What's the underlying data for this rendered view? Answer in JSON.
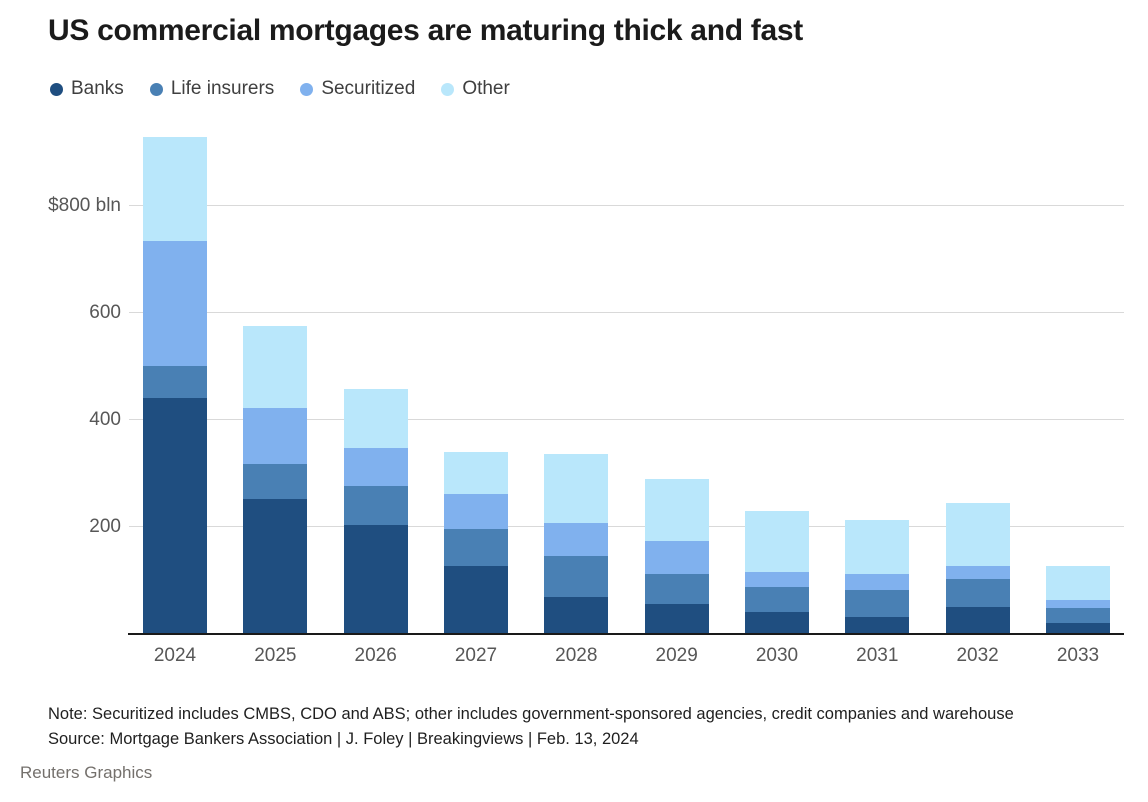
{
  "title": "US commercial mortgages are maturing thick and fast",
  "footnote": {
    "note": "Note: Securitized includes CMBS, CDO and ABS; other includes government-sponsored agencies, credit companies and warehouse",
    "source": "Source: Mortgage Bankers Association | J. Foley | Breakingviews | Feb. 13, 2024"
  },
  "footer": "Reuters Graphics",
  "colors": {
    "banks": "#1f4e80",
    "life_insurers": "#4980b4",
    "securitized": "#80b1ee",
    "other": "#b9e7fb",
    "gridline": "#d9d9d9",
    "axis": "#1a1a1a",
    "tick_text": "#575757"
  },
  "chart_data": {
    "type": "bar",
    "stacked": true,
    "title": "US commercial mortgages are maturing thick and fast",
    "unit": "$ bln",
    "categories": [
      "2024",
      "2025",
      "2026",
      "2027",
      "2028",
      "2029",
      "2030",
      "2031",
      "2032",
      "2033"
    ],
    "series": [
      {
        "name": "Banks",
        "color": "#1f4e80",
        "values": [
          441,
          252,
          204,
          127,
          69,
          56,
          42,
          31,
          51,
          20
        ]
      },
      {
        "name": "Life insurers",
        "color": "#4980b4",
        "values": [
          59,
          66,
          73,
          69,
          76,
          56,
          46,
          52,
          51,
          28
        ]
      },
      {
        "name": "Securitized",
        "color": "#80b1ee",
        "values": [
          234,
          105,
          70,
          65,
          63,
          62,
          27,
          30,
          25,
          16
        ]
      },
      {
        "name": "Other",
        "color": "#b9e7fb",
        "values": [
          195,
          152,
          110,
          79,
          128,
          115,
          115,
          100,
          117,
          63
        ]
      }
    ],
    "totals": [
      929,
      575,
      457,
      340,
      336,
      289,
      230,
      213,
      244,
      127
    ],
    "yticks": [
      {
        "value": 800,
        "label": "$800 bln"
      },
      {
        "value": 600,
        "label": "600"
      },
      {
        "value": 400,
        "label": "400"
      },
      {
        "value": 200,
        "label": "200"
      }
    ],
    "ylim": [
      0,
      940
    ],
    "grid": true,
    "legend_position": "top"
  }
}
